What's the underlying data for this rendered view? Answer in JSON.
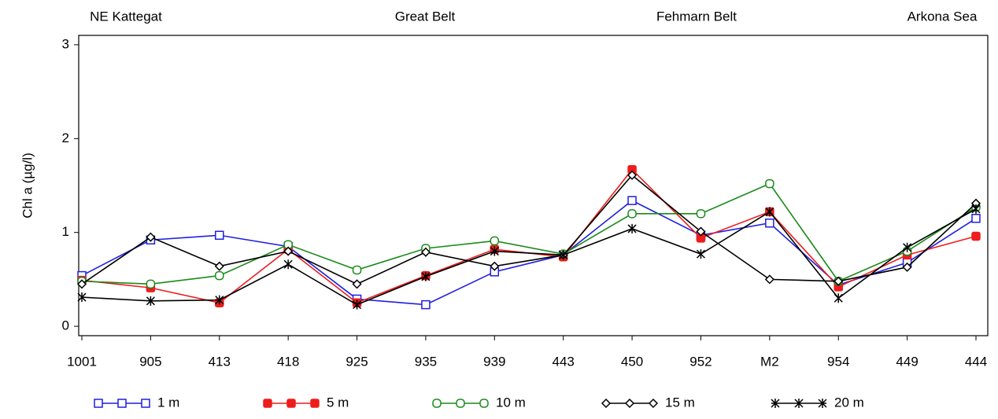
{
  "chart_data": {
    "type": "line",
    "annotations": [
      "NE Kattegat",
      "Great Belt",
      "Fehmarn Belt",
      "Arkona Sea"
    ],
    "y_label": "Chl a (µg/l)",
    "categories": [
      "1001",
      "905",
      "413",
      "418",
      "925",
      "935",
      "939",
      "443",
      "450",
      "952",
      "M2",
      "954",
      "449",
      "444"
    ],
    "ylim": [
      -0.1,
      3.1
    ],
    "yticks": [
      0,
      1,
      2,
      3
    ],
    "grid": false,
    "series": [
      {
        "name": "1 m",
        "color": "#1f1fe0",
        "marker": "square-open",
        "values": [
          0.54,
          0.92,
          0.97,
          0.85,
          0.29,
          0.23,
          0.58,
          0.76,
          1.34,
          0.97,
          1.1,
          0.44,
          0.68,
          1.15
        ]
      },
      {
        "name": "5 m",
        "color": "#ee1c1c",
        "marker": "square-filled",
        "values": [
          0.49,
          0.41,
          0.25,
          0.82,
          0.25,
          0.54,
          0.82,
          0.74,
          1.67,
          0.94,
          1.22,
          0.42,
          0.76,
          0.96
        ]
      },
      {
        "name": "10 m",
        "color": "#1a8a1a",
        "marker": "circle-open",
        "values": [
          0.48,
          0.45,
          0.54,
          0.87,
          0.6,
          0.83,
          0.91,
          0.77,
          1.2,
          1.2,
          1.52,
          0.48,
          0.8,
          1.27
        ]
      },
      {
        "name": "15 m",
        "color": "#000000",
        "marker": "diamond-open",
        "values": [
          0.45,
          0.95,
          0.64,
          0.8,
          0.45,
          0.79,
          0.64,
          0.76,
          1.61,
          1.01,
          0.5,
          0.48,
          0.63,
          1.31
        ]
      },
      {
        "name": "20 m",
        "color": "#000000",
        "marker": "star",
        "values": [
          0.31,
          0.27,
          0.28,
          0.66,
          0.23,
          0.53,
          0.8,
          0.76,
          1.04,
          0.77,
          1.22,
          0.3,
          0.84,
          1.25
        ]
      }
    ]
  }
}
